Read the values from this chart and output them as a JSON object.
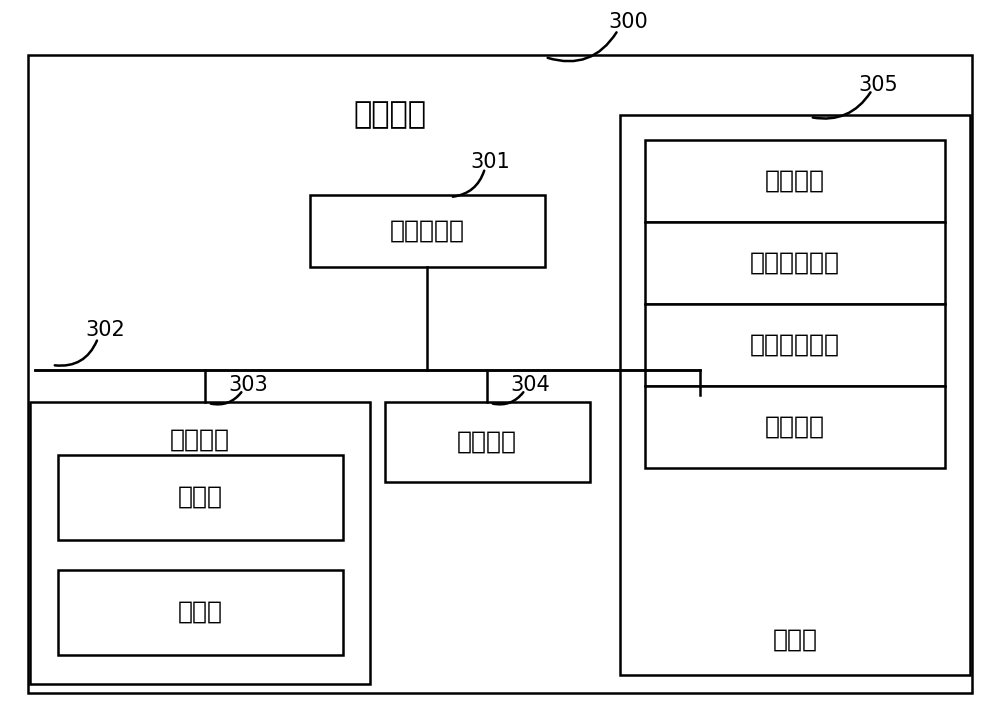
{
  "title": "电子设备",
  "label_300": "300",
  "label_301": "301",
  "label_302": "302",
  "label_303": "303",
  "label_304": "304",
  "label_305": "305",
  "cpu_label": "中央处理器",
  "ui_label": "用户接口",
  "net_label": "网络接口",
  "storage_label": "存储器",
  "camera_label": "摄像头",
  "display_label": "显示屏",
  "os_label": "操作系统",
  "net_module_label": "网络通信模块",
  "ui_module_label": "用户接口模块",
  "prog_label": "程序指令",
  "bg_color": "#ffffff",
  "box_color": "#000000",
  "text_color": "#000000",
  "font_size_title": 22,
  "font_size_label": 18,
  "font_size_number": 15
}
